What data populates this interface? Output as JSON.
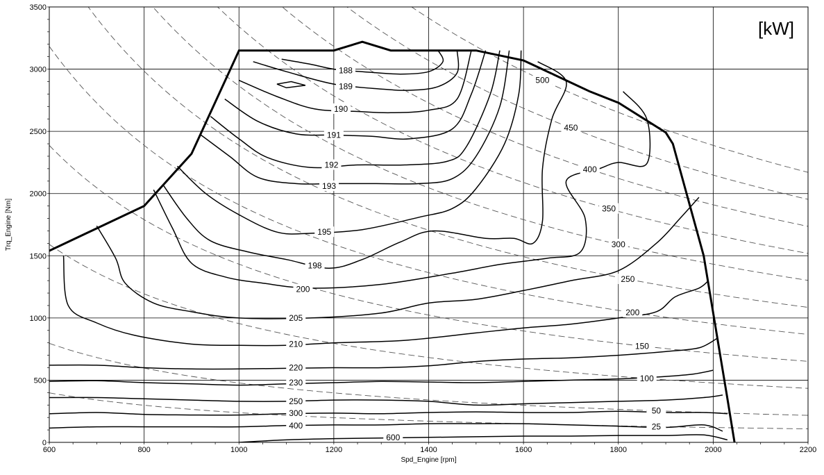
{
  "chart_data": {
    "type": "contour",
    "unit_label": "[kW]",
    "xlabel": "Spd_Engine [rpm]",
    "ylabel": "Trq_Engine [Nm]",
    "xlim": [
      600,
      2200
    ],
    "ylim": [
      0,
      3500
    ],
    "xticks": [
      "600",
      "800",
      "1000",
      "1200",
      "1400",
      "1600",
      "1800",
      "2000",
      "2200"
    ],
    "yticks": [
      "0",
      "500",
      "1000",
      "1500",
      "2000",
      "2500",
      "3000",
      "3500"
    ],
    "grid": true,
    "full_load_curve": [
      [
        600,
        1540
      ],
      [
        800,
        1900
      ],
      [
        900,
        2320
      ],
      [
        1000,
        3150
      ],
      [
        1200,
        3150
      ],
      [
        1260,
        3220
      ],
      [
        1320,
        3150
      ],
      [
        1500,
        3150
      ],
      [
        1600,
        3070
      ],
      [
        1740,
        2820
      ],
      [
        1800,
        2730
      ],
      [
        1900,
        2490
      ],
      [
        1915,
        2400
      ],
      [
        1980,
        1500
      ],
      [
        2030,
        350
      ],
      [
        2045,
        0
      ]
    ],
    "bsfc_contours": [
      {
        "label": "188",
        "points": [
          [
            1090,
            3080
          ],
          [
            1150,
            3040
          ],
          [
            1200,
            3000
          ],
          [
            1260,
            2980
          ],
          [
            1340,
            2960
          ],
          [
            1400,
            2980
          ],
          [
            1430,
            3060
          ],
          [
            1420,
            3150
          ]
        ]
      },
      {
        "label": "189",
        "points": [
          [
            1030,
            3060
          ],
          [
            1100,
            2980
          ],
          [
            1200,
            2880
          ],
          [
            1300,
            2840
          ],
          [
            1360,
            2830
          ],
          [
            1420,
            2860
          ],
          [
            1460,
            2970
          ],
          [
            1460,
            3150
          ]
        ]
      },
      {
        "label": "190",
        "points": [
          [
            1000,
            2910
          ],
          [
            1080,
            2780
          ],
          [
            1160,
            2680
          ],
          [
            1250,
            2660
          ],
          [
            1320,
            2650
          ],
          [
            1400,
            2670
          ],
          [
            1460,
            2760
          ],
          [
            1490,
            3150
          ]
        ]
      },
      {
        "label": "191",
        "points": [
          [
            970,
            2760
          ],
          [
            1040,
            2580
          ],
          [
            1120,
            2480
          ],
          [
            1200,
            2470
          ],
          [
            1280,
            2460
          ],
          [
            1360,
            2440
          ],
          [
            1450,
            2520
          ],
          [
            1490,
            2800
          ],
          [
            1520,
            3150
          ]
        ]
      },
      {
        "label": "192",
        "points": [
          [
            940,
            2620
          ],
          [
            1000,
            2440
          ],
          [
            1060,
            2290
          ],
          [
            1150,
            2210
          ],
          [
            1250,
            2230
          ],
          [
            1350,
            2230
          ],
          [
            1440,
            2260
          ],
          [
            1480,
            2380
          ],
          [
            1530,
            2800
          ],
          [
            1550,
            3150
          ]
        ]
      },
      {
        "label": "193",
        "points": [
          [
            920,
            2470
          ],
          [
            980,
            2300
          ],
          [
            1040,
            2130
          ],
          [
            1120,
            2080
          ],
          [
            1200,
            2080
          ],
          [
            1290,
            2080
          ],
          [
            1380,
            2080
          ],
          [
            1450,
            2120
          ],
          [
            1500,
            2300
          ],
          [
            1550,
            2700
          ],
          [
            1570,
            3150
          ]
        ]
      },
      {
        "label": "195",
        "points": [
          [
            870,
            2220
          ],
          [
            930,
            2000
          ],
          [
            1000,
            1830
          ],
          [
            1080,
            1690
          ],
          [
            1150,
            1680
          ],
          [
            1260,
            1710
          ],
          [
            1380,
            1810
          ],
          [
            1450,
            1880
          ],
          [
            1500,
            2040
          ],
          [
            1560,
            2400
          ],
          [
            1590,
            2800
          ],
          [
            1595,
            3150
          ]
        ]
      },
      {
        "label": "198",
        "points": [
          [
            840,
            2070
          ],
          [
            890,
            1800
          ],
          [
            940,
            1620
          ],
          [
            1020,
            1530
          ],
          [
            1100,
            1470
          ],
          [
            1190,
            1400
          ],
          [
            1260,
            1470
          ],
          [
            1340,
            1610
          ],
          [
            1410,
            1700
          ],
          [
            1520,
            1640
          ],
          [
            1580,
            1640
          ],
          [
            1620,
            1600
          ],
          [
            1640,
            1780
          ],
          [
            1640,
            2200
          ],
          [
            1660,
            2600
          ],
          [
            1690,
            2900
          ],
          [
            1630,
            3060
          ]
        ]
      },
      {
        "label": "200",
        "points": [
          [
            820,
            2030
          ],
          [
            860,
            1720
          ],
          [
            900,
            1440
          ],
          [
            970,
            1330
          ],
          [
            1050,
            1280
          ],
          [
            1150,
            1240
          ],
          [
            1300,
            1270
          ],
          [
            1450,
            1360
          ],
          [
            1550,
            1430
          ],
          [
            1650,
            1480
          ],
          [
            1720,
            1530
          ],
          [
            1730,
            1800
          ],
          [
            1690,
            2100
          ],
          [
            1760,
            2200
          ],
          [
            1800,
            2250
          ],
          [
            1860,
            2240
          ],
          [
            1860,
            2600
          ],
          [
            1810,
            2820
          ]
        ]
      },
      {
        "label": "205",
        "points": [
          [
            700,
            1740
          ],
          [
            740,
            1480
          ],
          [
            760,
            1280
          ],
          [
            820,
            1120
          ],
          [
            900,
            1050
          ],
          [
            1000,
            1000
          ],
          [
            1150,
            1000
          ],
          [
            1300,
            1040
          ],
          [
            1400,
            1120
          ],
          [
            1500,
            1150
          ],
          [
            1600,
            1220
          ],
          [
            1700,
            1300
          ],
          [
            1800,
            1380
          ],
          [
            1880,
            1600
          ],
          [
            1930,
            1800
          ],
          [
            1970,
            1970
          ]
        ]
      },
      {
        "label": "210",
        "points": [
          [
            630,
            1500
          ],
          [
            640,
            1100
          ],
          [
            700,
            960
          ],
          [
            780,
            860
          ],
          [
            900,
            790
          ],
          [
            1000,
            780
          ],
          [
            1100,
            780
          ],
          [
            1200,
            800
          ],
          [
            1350,
            820
          ],
          [
            1500,
            880
          ],
          [
            1600,
            920
          ],
          [
            1700,
            950
          ],
          [
            1800,
            1000
          ],
          [
            1880,
            1050
          ],
          [
            1920,
            1170
          ],
          [
            1970,
            1240
          ],
          [
            1990,
            1300
          ]
        ]
      },
      {
        "label": "220",
        "points": [
          [
            600,
            620
          ],
          [
            700,
            620
          ],
          [
            800,
            600
          ],
          [
            900,
            590
          ],
          [
            1000,
            590
          ],
          [
            1100,
            595
          ],
          [
            1200,
            600
          ],
          [
            1300,
            600
          ],
          [
            1400,
            615
          ],
          [
            1500,
            650
          ],
          [
            1600,
            670
          ],
          [
            1700,
            680
          ],
          [
            1800,
            700
          ],
          [
            1900,
            730
          ],
          [
            1970,
            760
          ],
          [
            2010,
            840
          ]
        ]
      },
      {
        "label": "230",
        "points": [
          [
            600,
            490
          ],
          [
            700,
            495
          ],
          [
            800,
            480
          ],
          [
            900,
            470
          ],
          [
            1000,
            460
          ],
          [
            1100,
            470
          ],
          [
            1200,
            480
          ],
          [
            1300,
            490
          ],
          [
            1400,
            485
          ],
          [
            1500,
            480
          ],
          [
            1600,
            490
          ],
          [
            1700,
            500
          ],
          [
            1800,
            510
          ],
          [
            1900,
            530
          ],
          [
            1960,
            550
          ],
          [
            2000,
            580
          ]
        ]
      },
      {
        "label": "250",
        "points": [
          [
            600,
            360
          ],
          [
            700,
            360
          ],
          [
            800,
            350
          ],
          [
            900,
            340
          ],
          [
            1000,
            330
          ],
          [
            1100,
            330
          ],
          [
            1200,
            340
          ],
          [
            1300,
            340
          ],
          [
            1400,
            330
          ],
          [
            1500,
            300
          ],
          [
            1600,
            310
          ],
          [
            1700,
            320
          ],
          [
            1800,
            330
          ],
          [
            1900,
            340
          ],
          [
            1980,
            360
          ],
          [
            2020,
            380
          ]
        ]
      },
      {
        "label": "300",
        "points": [
          [
            600,
            230
          ],
          [
            700,
            240
          ],
          [
            800,
            225
          ],
          [
            900,
            220
          ],
          [
            1000,
            220
          ],
          [
            1100,
            230
          ],
          [
            1200,
            235
          ],
          [
            1300,
            230
          ],
          [
            1400,
            240
          ],
          [
            1500,
            245
          ],
          [
            1600,
            240
          ],
          [
            1700,
            240
          ],
          [
            1800,
            250
          ],
          [
            1900,
            240
          ],
          [
            1980,
            240
          ],
          [
            2030,
            230
          ]
        ]
      },
      {
        "label": "400",
        "points": [
          [
            600,
            115
          ],
          [
            700,
            125
          ],
          [
            800,
            125
          ],
          [
            900,
            125
          ],
          [
            1000,
            125
          ],
          [
            1100,
            135
          ],
          [
            1200,
            140
          ],
          [
            1300,
            140
          ],
          [
            1400,
            150
          ],
          [
            1500,
            150
          ],
          [
            1600,
            150
          ],
          [
            1700,
            140
          ],
          [
            1800,
            130
          ],
          [
            1900,
            120
          ],
          [
            1980,
            140
          ],
          [
            2020,
            90
          ]
        ]
      },
      {
        "label": "600",
        "points": [
          [
            1000,
            0
          ],
          [
            1100,
            20
          ],
          [
            1200,
            30
          ],
          [
            1300,
            35
          ],
          [
            1400,
            40
          ],
          [
            1500,
            45
          ],
          [
            1600,
            50
          ],
          [
            1700,
            50
          ],
          [
            1800,
            55
          ],
          [
            1900,
            55
          ],
          [
            1980,
            60
          ],
          [
            2030,
            20
          ]
        ]
      }
    ],
    "power_lines_kW": [
      25,
      50,
      100,
      150,
      200,
      250,
      300,
      350,
      400,
      450,
      500
    ]
  }
}
